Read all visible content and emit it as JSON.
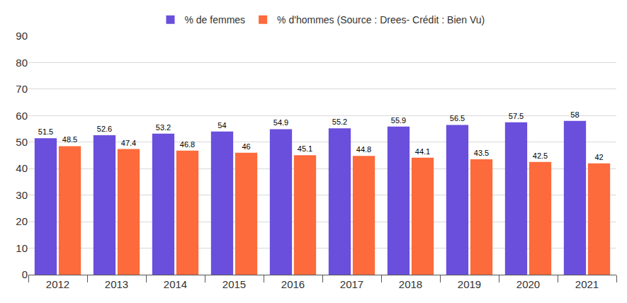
{
  "chart_data": {
    "type": "bar",
    "categories": [
      "2012",
      "2013",
      "2014",
      "2015",
      "2016",
      "2017",
      "2018",
      "2019",
      "2020",
      "2021"
    ],
    "series": [
      {
        "name": "% de femmes",
        "color": "#6a4fdc",
        "values": [
          51.5,
          52.6,
          53.2,
          54,
          54.9,
          55.2,
          55.9,
          56.5,
          57.5,
          58
        ]
      },
      {
        "name": "% d'hommes (Source : Drees- Crédit : Bien Vu)",
        "color": "#fd6a3b",
        "values": [
          48.5,
          47.4,
          46.8,
          46,
          45.1,
          44.8,
          44.1,
          43.5,
          42.5,
          42
        ]
      }
    ],
    "ylim": [
      0,
      90
    ],
    "yticks": [
      0,
      10,
      20,
      30,
      40,
      50,
      60,
      70,
      80,
      90
    ],
    "grid": true,
    "legend": "top",
    "data_labels": true
  }
}
